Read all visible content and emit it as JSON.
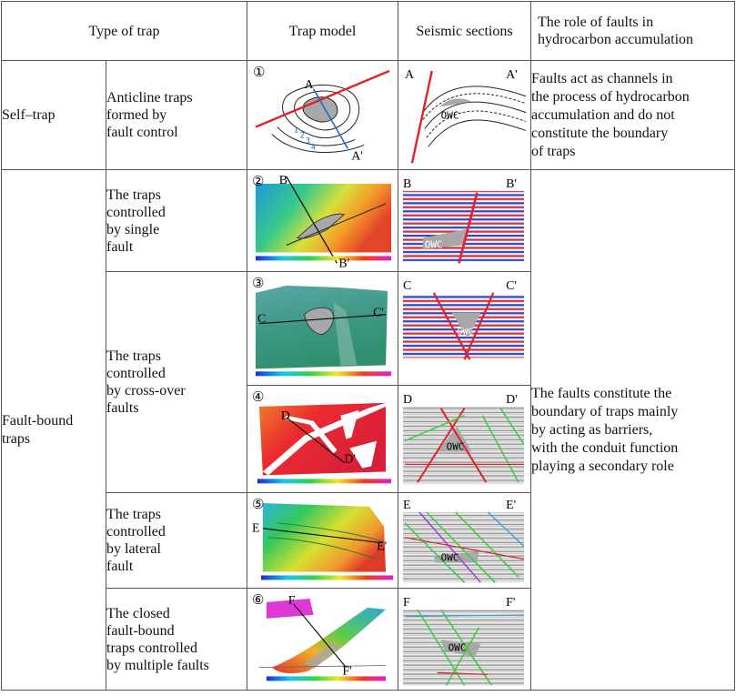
{
  "headers": {
    "type": "Type of trap",
    "model": "Trap model",
    "seismic": "Seismic sections",
    "role_line1": "The role of faults in",
    "role_line2": "hydrocarbon accumulation"
  },
  "self_trap": {
    "label": "Self–trap",
    "subtype": [
      "Anticline traps",
      "formed by",
      "fault control"
    ],
    "model_no": "①",
    "model_labels": {
      "a": "A",
      "a2": "A'",
      "n1": "1",
      "n2": "2",
      "n3": "3",
      "n4": "4"
    },
    "seismic_labels": {
      "a": "A",
      "a2": "A'",
      "owc": "OWC"
    },
    "role": [
      "Faults act as channels in",
      "the process of hydrocarbon",
      "accumulation and do not",
      "constitute the boundary",
      "of traps"
    ]
  },
  "fault_bound": {
    "label": [
      "Fault-bound",
      "traps"
    ],
    "role": [
      "The faults constitute the",
      "boundary of traps mainly",
      "by acting as barriers,",
      "with the conduit function",
      "playing a secondary role"
    ],
    "rows": [
      {
        "subtype": [
          "The traps",
          "controlled",
          "by single",
          "fault"
        ],
        "no": "②",
        "p": "B",
        "p2": "B'",
        "owc": "OWC"
      },
      {
        "subtype": [
          "The traps",
          "controlled",
          "by cross-over",
          "faults"
        ],
        "no": "③",
        "p": "C",
        "p2": "C'",
        "owc": "OWC"
      },
      {
        "no": "④",
        "p": "D",
        "p2": "D'",
        "owc": "OWC"
      },
      {
        "subtype": [
          "The traps",
          "controlled",
          "by lateral",
          "fault"
        ],
        "no": "⑤",
        "p": "E",
        "p2": "E'",
        "owc": "OWC"
      },
      {
        "subtype": [
          "The closed",
          "fault-bound",
          "traps controlled",
          "by multiple faults"
        ],
        "no": "⑥",
        "p": "F",
        "p2": "F'",
        "owc": "OWC"
      }
    ]
  },
  "colors": {
    "fault": "#e2202a",
    "trap_fill": "#a8a8a8",
    "line": "#1a1a1a",
    "contour_blue": "#1d6fc4"
  }
}
